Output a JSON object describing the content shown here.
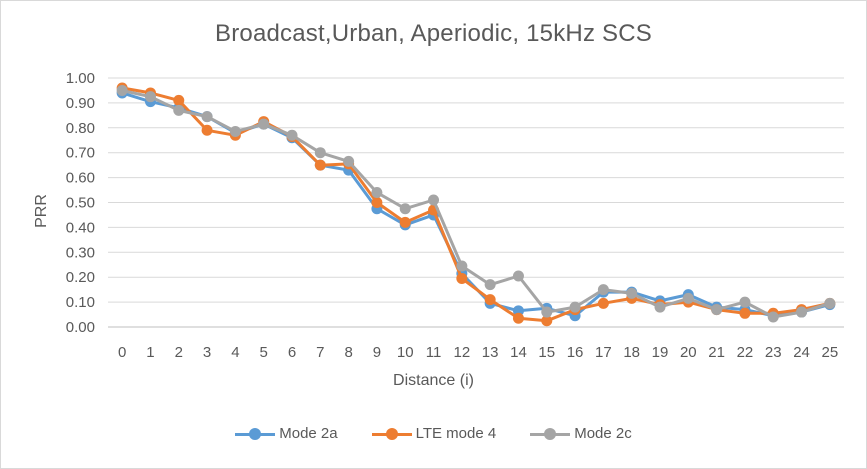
{
  "chart_data": {
    "type": "line",
    "title": "Broadcast,Urban, Aperiodic, 15kHz SCS",
    "xlabel": "Distance (i)",
    "ylabel": "PRR",
    "categories": [
      "0",
      "1",
      "2",
      "3",
      "4",
      "5",
      "6",
      "7",
      "8",
      "9",
      "10",
      "11",
      "12",
      "13",
      "14",
      "15",
      "16",
      "17",
      "18",
      "19",
      "20",
      "21",
      "22",
      "23",
      "24",
      "25"
    ],
    "ylim": [
      0,
      1
    ],
    "yticks": [
      "0.00",
      "0.10",
      "0.20",
      "0.30",
      "0.40",
      "0.50",
      "0.60",
      "0.70",
      "0.80",
      "0.90",
      "1.00"
    ],
    "grid": true,
    "legend_position": "bottom",
    "series": [
      {
        "name": "Mode 2a",
        "color": "#5b9bd5",
        "values": [
          0.94,
          0.905,
          0.88,
          0.845,
          0.78,
          0.815,
          0.76,
          0.65,
          0.63,
          0.475,
          0.41,
          0.45,
          0.215,
          0.095,
          0.065,
          0.075,
          0.045,
          0.14,
          0.14,
          0.105,
          0.13,
          0.08,
          0.07,
          0.045,
          0.06,
          0.09
        ]
      },
      {
        "name": "LTE mode 4",
        "color": "#ed7d31",
        "values": [
          0.96,
          0.94,
          0.91,
          0.79,
          0.77,
          0.825,
          0.765,
          0.65,
          0.655,
          0.5,
          0.42,
          0.47,
          0.195,
          0.11,
          0.035,
          0.025,
          0.07,
          0.095,
          0.115,
          0.09,
          0.1,
          0.07,
          0.055,
          0.055,
          0.07,
          0.095
        ]
      },
      {
        "name": "Mode 2c",
        "color": "#a5a5a5",
        "values": [
          0.95,
          0.925,
          0.87,
          0.845,
          0.785,
          0.815,
          0.77,
          0.7,
          0.665,
          0.54,
          0.475,
          0.51,
          0.245,
          0.17,
          0.205,
          0.06,
          0.08,
          0.15,
          0.135,
          0.08,
          0.115,
          0.07,
          0.1,
          0.04,
          0.06,
          0.095
        ]
      }
    ]
  }
}
